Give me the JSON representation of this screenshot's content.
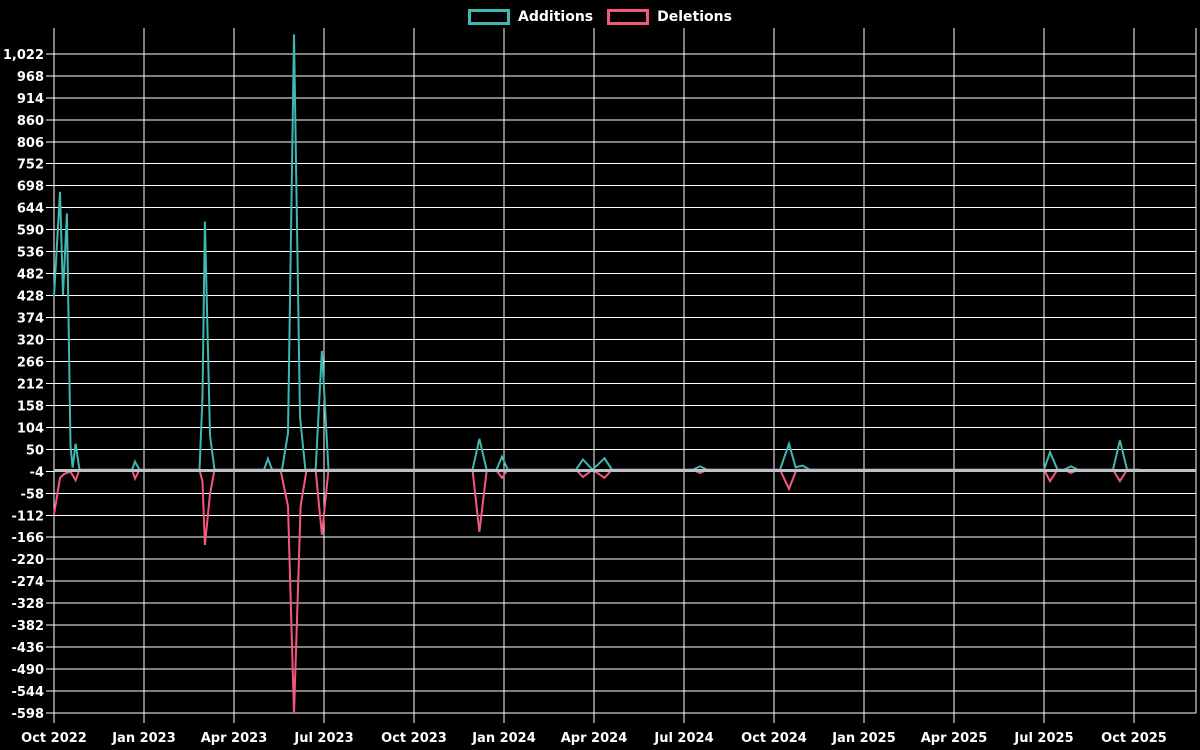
{
  "legend": {
    "additions_label": "Additions",
    "deletions_label": "Deletions"
  },
  "colors": {
    "additions": "#40b7b1",
    "deletions": "#f4587c",
    "zero_baseline": "#b9c1c9",
    "grid": "#ffffff",
    "text": "#ffffff",
    "background": "#000000"
  },
  "chart_data": {
    "type": "line",
    "title": "",
    "xlabel": "",
    "ylabel": "",
    "grid": true,
    "legend_position": "top-center",
    "x_axis": {
      "unit": "months since Oct 2022",
      "tick_months": [
        0,
        3,
        6,
        9,
        12,
        15,
        18,
        21,
        24,
        27,
        30,
        33,
        36
      ],
      "tick_labels": [
        "Oct 2022",
        "Jan 2023",
        "Apr 2023",
        "Jul 2023",
        "Oct 2023",
        "Jan 2024",
        "Apr 2024",
        "Jul 2024",
        "Oct 2024",
        "Jan 2025",
        "Apr 2025",
        "Jul 2025",
        "Oct 2025"
      ]
    },
    "y_axis": {
      "min": -598,
      "max": 1022,
      "step": 54,
      "tick_values": [
        1022,
        968,
        914,
        860,
        806,
        752,
        698,
        644,
        590,
        536,
        482,
        428,
        374,
        320,
        266,
        212,
        158,
        104,
        50,
        -4,
        -58,
        -112,
        -166,
        -220,
        -274,
        -328,
        -382,
        -436,
        -490,
        -544,
        -598
      ],
      "tick_labels": [
        "1,022",
        "968",
        "914",
        "860",
        "806",
        "752",
        "698",
        "644",
        "590",
        "536",
        "482",
        "428",
        "374",
        "320",
        "266",
        "212",
        "158",
        "104",
        "50",
        "-4",
        "-58",
        "-112",
        "-166",
        "-220",
        "-274",
        "-328",
        "-382",
        "-436",
        "-490",
        "-544",
        "-598"
      ]
    },
    "series": [
      {
        "name": "Additions",
        "color_key": "additions",
        "points": [
          [
            0,
            425
          ],
          [
            0.2,
            683
          ],
          [
            0.3,
            430
          ],
          [
            0.43,
            630
          ],
          [
            0.55,
            60
          ],
          [
            0.62,
            5
          ],
          [
            0.72,
            64
          ],
          [
            0.85,
            0
          ],
          [
            2.6,
            0
          ],
          [
            2.7,
            20
          ],
          [
            2.85,
            0
          ],
          [
            4.85,
            0
          ],
          [
            4.95,
            180
          ],
          [
            5.03,
            610
          ],
          [
            5.2,
            85
          ],
          [
            5.35,
            0
          ],
          [
            7.0,
            0
          ],
          [
            7.13,
            27
          ],
          [
            7.27,
            0
          ],
          [
            7.6,
            0
          ],
          [
            7.8,
            90
          ],
          [
            8.0,
            1070
          ],
          [
            8.2,
            130
          ],
          [
            8.38,
            0
          ],
          [
            8.72,
            0
          ],
          [
            8.93,
            292
          ],
          [
            9.15,
            0
          ],
          [
            13.95,
            0
          ],
          [
            14.18,
            76
          ],
          [
            14.42,
            0
          ],
          [
            14.75,
            0
          ],
          [
            14.93,
            32
          ],
          [
            15.13,
            0
          ],
          [
            17.4,
            0
          ],
          [
            17.63,
            25
          ],
          [
            17.95,
            0
          ],
          [
            18.35,
            28
          ],
          [
            18.6,
            0
          ],
          [
            21.3,
            0
          ],
          [
            21.53,
            8
          ],
          [
            21.77,
            0
          ],
          [
            24.2,
            0
          ],
          [
            24.5,
            64
          ],
          [
            24.72,
            6
          ],
          [
            24.95,
            10
          ],
          [
            25.2,
            0
          ],
          [
            33.0,
            0
          ],
          [
            33.2,
            43
          ],
          [
            33.45,
            0
          ],
          [
            33.67,
            0
          ],
          [
            33.9,
            8
          ],
          [
            34.13,
            0
          ],
          [
            35.3,
            0
          ],
          [
            35.53,
            72
          ],
          [
            35.77,
            0
          ],
          [
            36.2,
            0
          ]
        ]
      },
      {
        "name": "Deletions",
        "color_key": "deletions",
        "points": [
          [
            0,
            -110
          ],
          [
            0.2,
            -20
          ],
          [
            0.35,
            -10
          ],
          [
            0.55,
            -5
          ],
          [
            0.72,
            -26
          ],
          [
            0.85,
            0
          ],
          [
            2.6,
            0
          ],
          [
            2.7,
            -22
          ],
          [
            2.85,
            0
          ],
          [
            4.85,
            0
          ],
          [
            4.95,
            -30
          ],
          [
            5.03,
            -185
          ],
          [
            5.2,
            -60
          ],
          [
            5.35,
            0
          ],
          [
            7.55,
            0
          ],
          [
            7.8,
            -90
          ],
          [
            8.0,
            -600
          ],
          [
            8.22,
            -90
          ],
          [
            8.42,
            0
          ],
          [
            8.72,
            0
          ],
          [
            8.93,
            -160
          ],
          [
            9.15,
            0
          ],
          [
            13.95,
            0
          ],
          [
            14.18,
            -153
          ],
          [
            14.42,
            -4
          ],
          [
            14.75,
            -2
          ],
          [
            14.93,
            -20
          ],
          [
            15.13,
            0
          ],
          [
            17.4,
            0
          ],
          [
            17.63,
            -18
          ],
          [
            17.95,
            0
          ],
          [
            18.35,
            -20
          ],
          [
            18.6,
            0
          ],
          [
            21.3,
            0
          ],
          [
            21.53,
            -8
          ],
          [
            21.77,
            0
          ],
          [
            24.2,
            0
          ],
          [
            24.5,
            -47
          ],
          [
            24.75,
            0
          ],
          [
            33.0,
            0
          ],
          [
            33.2,
            -28
          ],
          [
            33.45,
            0
          ],
          [
            33.67,
            0
          ],
          [
            33.9,
            -8
          ],
          [
            34.13,
            0
          ],
          [
            35.3,
            0
          ],
          [
            35.53,
            -28
          ],
          [
            35.77,
            0
          ],
          [
            36.2,
            0
          ]
        ]
      }
    ]
  }
}
